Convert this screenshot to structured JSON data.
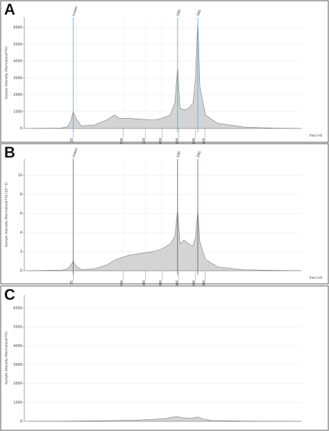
{
  "chart_data": [
    {
      "type": "area",
      "panel": "A",
      "y_label": "Sample Intensity (Normalized FU)",
      "x_label": "Size [nt]",
      "log_x": true,
      "xlim": [
        3.3,
        330000
      ],
      "xticks": [
        25,
        200,
        500,
        1000,
        2000,
        4000,
        6000
      ],
      "ylim": [
        0,
        6600
      ],
      "yticks": [
        0,
        1000,
        2000,
        3000,
        4000,
        5000,
        6000
      ],
      "grid": true,
      "markers": [
        {
          "label": "Lower",
          "x": 25
        },
        {
          "label": "18S",
          "x": 1900
        },
        {
          "label": "28S",
          "x": 4400
        }
      ],
      "marker_color": "#5aa0e0",
      "series": [
        {
          "color": "#d4d4d4",
          "x": [
            4,
            15,
            20,
            23,
            25,
            28,
            35,
            60,
            100,
            140,
            170,
            250,
            400,
            700,
            1000,
            1400,
            1700,
            1900,
            2100,
            2500,
            3000,
            3600,
            4000,
            4400,
            4800,
            6000,
            10000,
            30000,
            100000,
            300000
          ],
          "values": [
            0,
            20,
            100,
            500,
            1000,
            600,
            150,
            200,
            500,
            800,
            600,
            600,
            550,
            500,
            600,
            800,
            1500,
            3600,
            1200,
            1100,
            1200,
            1500,
            3000,
            6400,
            2500,
            800,
            300,
            80,
            20,
            0
          ]
        }
      ]
    },
    {
      "type": "area",
      "panel": "B",
      "y_label": "Sample Intensity (Normalized FU) [10^3]",
      "x_label": "Size [nt]",
      "log_x": true,
      "xlim": [
        3.3,
        330000
      ],
      "xticks": [
        25,
        200,
        500,
        1000,
        2000,
        4000,
        6000
      ],
      "ylim": [
        0,
        11.7
      ],
      "yticks": [
        0,
        2,
        4,
        6,
        8,
        10
      ],
      "grid": true,
      "markers": [
        {
          "label": "Lower",
          "x": 25
        },
        {
          "label": "18S",
          "x": 1900
        },
        {
          "label": "28S",
          "x": 4400
        }
      ],
      "marker_color": "#555555",
      "series": [
        {
          "color": "#d4d4d4",
          "x": [
            4,
            15,
            20,
            23,
            25,
            28,
            35,
            60,
            100,
            140,
            170,
            250,
            400,
            700,
            1000,
            1400,
            1700,
            1900,
            2100,
            2500,
            3000,
            3600,
            4000,
            4400,
            4800,
            6000,
            10000,
            30000,
            100000,
            300000
          ],
          "values": [
            0,
            0.05,
            0.2,
            0.6,
            1.0,
            0.5,
            0.1,
            0.2,
            0.6,
            1.1,
            1.3,
            1.6,
            1.8,
            2.0,
            2.3,
            2.8,
            3.6,
            6.3,
            2.8,
            3.2,
            2.8,
            2.6,
            3.5,
            6.2,
            3.0,
            1.2,
            0.4,
            0.1,
            0.03,
            0
          ]
        }
      ]
    },
    {
      "type": "area",
      "panel": "C",
      "y_label": "Sample Intensity (Normalized FU)",
      "log_x": true,
      "xlim": [
        3.3,
        330000
      ],
      "ylim": [
        0,
        6700
      ],
      "yticks": [
        0,
        1000,
        2000,
        3000,
        4000,
        5000,
        6000
      ],
      "grid": true,
      "series": [
        {
          "color": "#d4d4d4",
          "x": [
            4,
            25,
            100,
            300,
            700,
            1200,
            1500,
            1900,
            2500,
            3500,
            4400,
            5500,
            8000,
            30000,
            300000
          ],
          "values": [
            0,
            10,
            30,
            60,
            100,
            150,
            220,
            240,
            180,
            160,
            230,
            120,
            40,
            10,
            0
          ]
        }
      ]
    }
  ]
}
